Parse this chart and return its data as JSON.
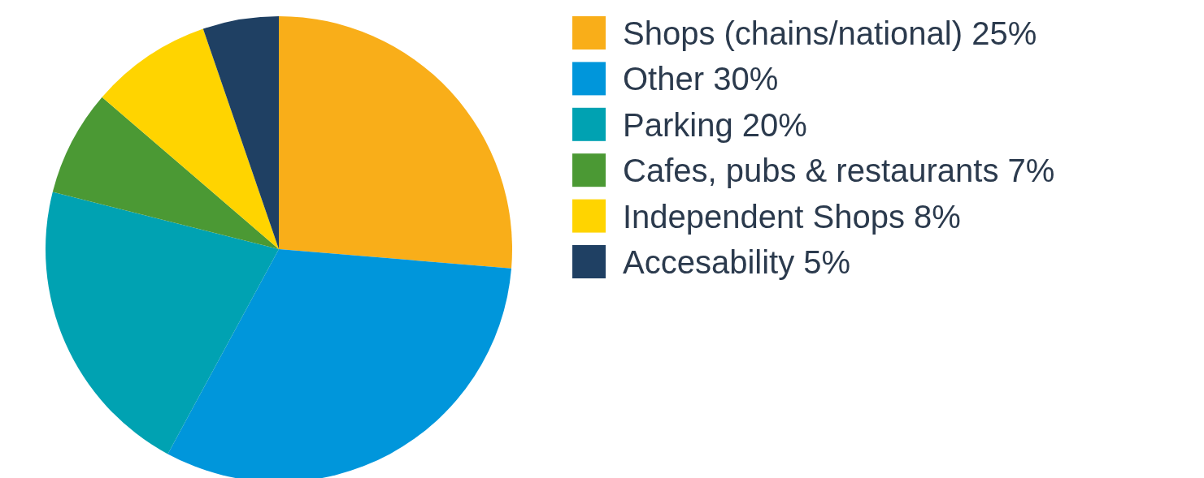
{
  "chart_data": {
    "type": "pie",
    "categories": [
      "Shops (chains/national)",
      "Other",
      "Parking",
      "Cafes, pubs & restaurants",
      "Independent Shops",
      "Accesability"
    ],
    "values": [
      25,
      30,
      20,
      7,
      8,
      5
    ],
    "value_labels": [
      "25%",
      "30%",
      "20%",
      "7%",
      "8%",
      "5%"
    ],
    "colors": [
      "#f9ae19",
      "#0096db",
      "#00a2b2",
      "#4b9934",
      "#ffd400",
      "#1f4063"
    ],
    "legend": "right"
  }
}
